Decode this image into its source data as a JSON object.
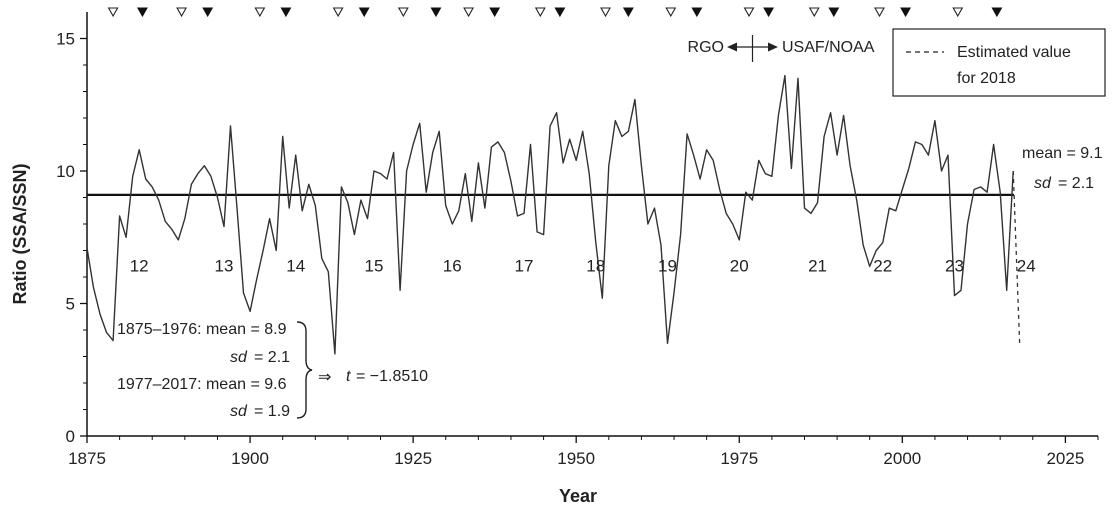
{
  "chart_data": {
    "type": "line",
    "xlabel": "Year",
    "ylabel": "Ratio (SSA/SSN)",
    "xlim": [
      1875,
      2030
    ],
    "ylim": [
      0,
      16
    ],
    "xticks": [
      1875,
      1900,
      1925,
      1950,
      1975,
      2000,
      2025
    ],
    "yticks": [
      0,
      5,
      10,
      15
    ],
    "grid": false,
    "colors": {
      "series": "#333333",
      "mean_line": "#111111",
      "axis": "#111111"
    },
    "series": [
      {
        "x": [
          1875,
          1876,
          1877,
          1878,
          1879,
          1880,
          1881,
          1882,
          1883,
          1884,
          1885,
          1886,
          1887,
          1888,
          1889,
          1890,
          1891,
          1892,
          1893,
          1894,
          1895,
          1896,
          1897,
          1898,
          1899,
          1900,
          1901,
          1902,
          1903,
          1904,
          1905,
          1906,
          1907,
          1908,
          1909,
          1910,
          1911,
          1912,
          1913,
          1914,
          1915,
          1916,
          1917,
          1918,
          1919,
          1920,
          1921,
          1922,
          1923,
          1924,
          1925,
          1926,
          1927,
          1928,
          1929,
          1930,
          1931,
          1932,
          1933,
          1934,
          1935,
          1936,
          1937,
          1938,
          1939,
          1940,
          1941,
          1942,
          1943,
          1944,
          1945,
          1946,
          1947,
          1948,
          1949,
          1950,
          1951,
          1952,
          1953,
          1954,
          1955,
          1956,
          1957,
          1958,
          1959,
          1960,
          1961,
          1962,
          1963,
          1964,
          1965,
          1966,
          1967,
          1968,
          1969,
          1970,
          1971,
          1972,
          1973,
          1974,
          1975,
          1976,
          1977,
          1978,
          1979,
          1980,
          1981,
          1982,
          1983,
          1984,
          1985,
          1986,
          1987,
          1988,
          1989,
          1990,
          1991,
          1992,
          1993,
          1994,
          1995,
          1996,
          1997,
          1998,
          1999,
          2000,
          2001,
          2002,
          2003,
          2004,
          2005,
          2006,
          2007,
          2008,
          2009,
          2010,
          2011,
          2012,
          2013,
          2014,
          2015,
          2016,
          2017
        ],
        "y": [
          7.1,
          5.6,
          4.6,
          3.9,
          3.6,
          8.3,
          7.5,
          9.8,
          10.8,
          9.7,
          9.4,
          8.9,
          8.1,
          7.8,
          7.4,
          8.2,
          9.5,
          9.9,
          10.2,
          9.8,
          9.0,
          7.9,
          11.7,
          8.6,
          5.4,
          4.7,
          5.9,
          7.0,
          8.2,
          7.0,
          11.3,
          8.6,
          10.6,
          8.5,
          9.5,
          8.7,
          6.7,
          6.2,
          3.1,
          9.4,
          8.8,
          7.6,
          8.9,
          8.2,
          10.0,
          9.9,
          9.7,
          10.7,
          5.5,
          10.0,
          11.0,
          11.8,
          9.2,
          10.7,
          11.5,
          8.7,
          8.0,
          8.5,
          9.9,
          8.1,
          10.3,
          8.6,
          10.9,
          11.1,
          10.7,
          9.6,
          8.3,
          8.4,
          11.0,
          7.7,
          7.6,
          11.7,
          12.2,
          10.3,
          11.2,
          10.4,
          11.5,
          9.9,
          7.3,
          5.2,
          10.2,
          11.9,
          11.3,
          11.5,
          12.7,
          10.2,
          8.0,
          8.6,
          7.2,
          3.5,
          5.4,
          7.6,
          11.4,
          10.6,
          9.7,
          10.8,
          10.4,
          9.3,
          8.4,
          8.0,
          7.4,
          9.2,
          8.9,
          10.4,
          9.9,
          9.8,
          12.1,
          13.6,
          10.1,
          13.5,
          8.6,
          8.4,
          8.8,
          11.3,
          12.2,
          10.6,
          12.1,
          10.2,
          8.9,
          7.2,
          6.4,
          7.0,
          7.3,
          8.6,
          8.5,
          9.3,
          10.1,
          11.1,
          11.0,
          10.6,
          11.9,
          10.0,
          10.6,
          5.3,
          5.5,
          8.0,
          9.3,
          9.4,
          9.2,
          11.0,
          9.2,
          5.5,
          10.0
        ]
      }
    ],
    "estimate": {
      "year": 2018,
      "value": 3.4
    },
    "mean_line": {
      "value": 9.1
    },
    "annotations": {
      "mean_text": "mean = 9.1",
      "sd_label": "sd",
      "sd_value": "= 2.1",
      "period1_text": "1875–1976: mean = 8.9",
      "period1_sd": "= 2.1",
      "period2_text": "1977–2017: mean = 9.6",
      "period2_sd": "= 1.9",
      "t_symbol": "t",
      "t_value": "= −1.8510",
      "arrow": "⇒",
      "rgo": "RGO",
      "usaf": "USAF/NOAA",
      "sd_word": "sd"
    },
    "cycles": [
      {
        "label": "12",
        "year": 1883
      },
      {
        "label": "13",
        "year": 1896
      },
      {
        "label": "14",
        "year": 1907
      },
      {
        "label": "15",
        "year": 1919
      },
      {
        "label": "16",
        "year": 1931
      },
      {
        "label": "17",
        "year": 1942
      },
      {
        "label": "18",
        "year": 1953
      },
      {
        "label": "19",
        "year": 1964
      },
      {
        "label": "20",
        "year": 1975
      },
      {
        "label": "21",
        "year": 1987
      },
      {
        "label": "22",
        "year": 1997
      },
      {
        "label": "23",
        "year": 2008
      },
      {
        "label": "24",
        "year": 2019
      }
    ],
    "minima_years": [
      1879,
      1889.5,
      1901.5,
      1913.5,
      1923.5,
      1933.5,
      1944.5,
      1954.5,
      1964.5,
      1976.5,
      1986.5,
      1996.5,
      2008.5
    ],
    "maxima_years": [
      1883.5,
      1893.5,
      1905.5,
      1917.5,
      1928.5,
      1937.5,
      1947.5,
      1958,
      1968.5,
      1979.5,
      1989.5,
      2000.5,
      2014.5
    ],
    "legend": {
      "line1": "Estimated value",
      "line2": "for 2018",
      "position": "top-right"
    }
  }
}
